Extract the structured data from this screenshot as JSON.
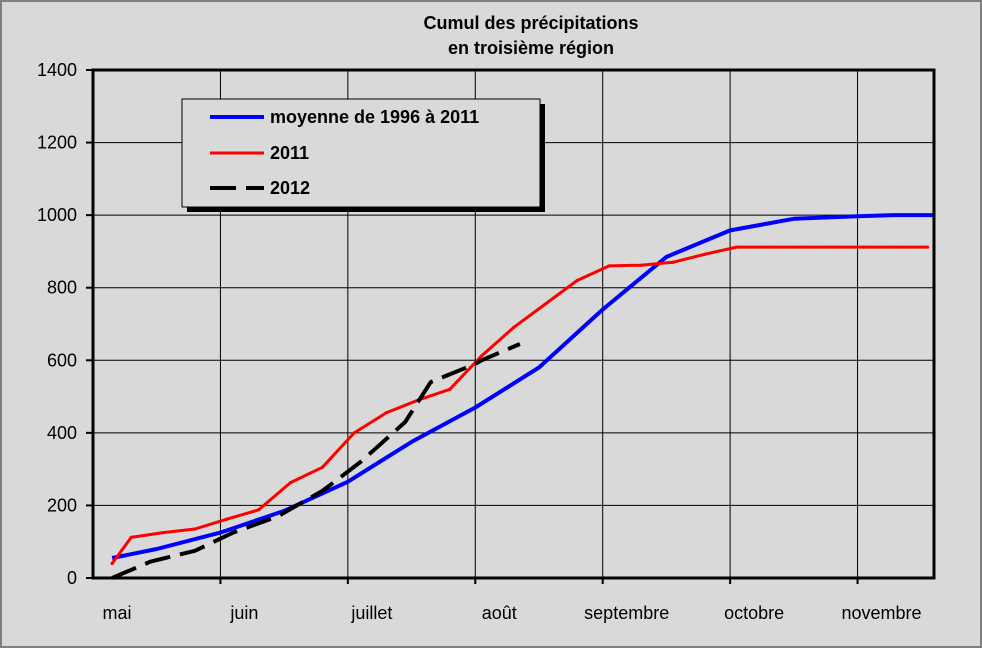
{
  "chart_data": {
    "type": "line",
    "title": [
      "Cumul des précipitations",
      "en troisième région"
    ],
    "xlabel": "",
    "ylabel": "",
    "ylim": [
      0,
      1400
    ],
    "yticks": [
      0,
      200,
      400,
      600,
      800,
      1000,
      1200,
      1400
    ],
    "xlim": [
      0,
      6.6
    ],
    "categories": [
      "mai",
      "juin",
      "juillet",
      "août",
      "septembre",
      "octobre",
      "novembre"
    ],
    "grid": true,
    "legend_position": "top-left",
    "series": [
      {
        "name": "moyenne de 1996 à 2011",
        "color": "#0000ff",
        "style": "solid",
        "x": [
          0.15,
          0.5,
          1.0,
          1.5,
          2.0,
          2.5,
          3.0,
          3.5,
          4.0,
          4.5,
          5.0,
          5.5,
          6.0,
          6.3,
          6.6
        ],
        "values": [
          55,
          80,
          125,
          185,
          265,
          375,
          470,
          580,
          740,
          885,
          958,
          990,
          997,
          1000,
          1000
        ]
      },
      {
        "name": "2011",
        "color": "#ff0000",
        "style": "solid",
        "x": [
          0.15,
          0.3,
          0.55,
          0.8,
          1.05,
          1.3,
          1.55,
          1.8,
          2.05,
          2.3,
          2.55,
          2.8,
          3.05,
          3.3,
          3.55,
          3.8,
          4.05,
          4.3,
          4.55,
          4.8,
          5.05,
          5.3,
          5.55,
          5.8,
          6.05,
          6.3,
          6.55
        ],
        "values": [
          40,
          112,
          125,
          135,
          162,
          188,
          263,
          305,
          400,
          455,
          490,
          520,
          612,
          690,
          755,
          820,
          860,
          862,
          870,
          892,
          912,
          912,
          912,
          912,
          912,
          912,
          912
        ]
      },
      {
        "name": "2012",
        "color": "#000000",
        "style": "dashed",
        "x": [
          0.15,
          0.45,
          0.8,
          1.1,
          1.45,
          1.8,
          2.1,
          2.45,
          2.65,
          3.0,
          3.05,
          3.35
        ],
        "values": [
          0,
          45,
          75,
          125,
          170,
          240,
          320,
          430,
          540,
          590,
          600,
          645
        ]
      }
    ]
  }
}
